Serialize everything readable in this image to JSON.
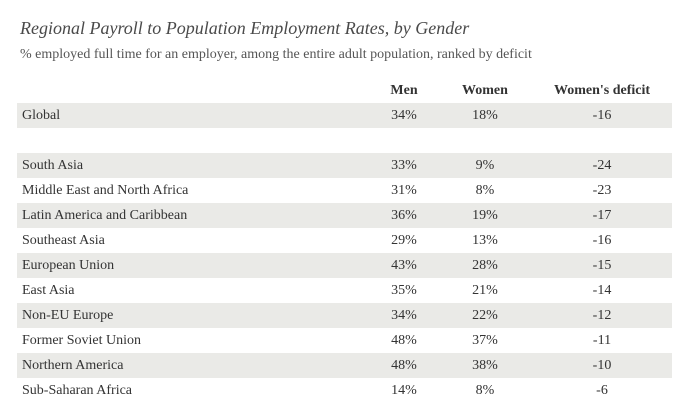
{
  "title": "Regional Payroll to Population Employment Rates, by Gender",
  "subtitle": "% employed full time for an employer, among the entire adult population, ranked by deficit",
  "chart_data": {
    "type": "table",
    "columns": [
      "",
      "Men",
      "Women",
      "Women's deficit"
    ],
    "global": {
      "region": "Global",
      "men": "34%",
      "women": "18%",
      "deficit": "-16"
    },
    "rows": [
      {
        "region": "South Asia",
        "men": "33%",
        "women": "9%",
        "deficit": "-24"
      },
      {
        "region": "Middle East and North Africa",
        "men": "31%",
        "women": "8%",
        "deficit": "-23"
      },
      {
        "region": "Latin America and Caribbean",
        "men": "36%",
        "women": "19%",
        "deficit": "-17"
      },
      {
        "region": "Southeast Asia",
        "men": "29%",
        "women": "13%",
        "deficit": "-16"
      },
      {
        "region": "European Union",
        "men": "43%",
        "women": "28%",
        "deficit": "-15"
      },
      {
        "region": "East Asia",
        "men": "35%",
        "women": "21%",
        "deficit": "-14"
      },
      {
        "region": "Non-EU Europe",
        "men": "34%",
        "women": "22%",
        "deficit": "-12"
      },
      {
        "region": "Former Soviet Union",
        "men": "48%",
        "women": "37%",
        "deficit": "-11"
      },
      {
        "region": "Northern America",
        "men": "48%",
        "women": "38%",
        "deficit": "-10"
      },
      {
        "region": "Sub-Saharan Africa",
        "men": "14%",
        "women": "8%",
        "deficit": "-6"
      }
    ]
  },
  "colors": {
    "shaded_row": "#eaeae7",
    "text": "#333333"
  }
}
